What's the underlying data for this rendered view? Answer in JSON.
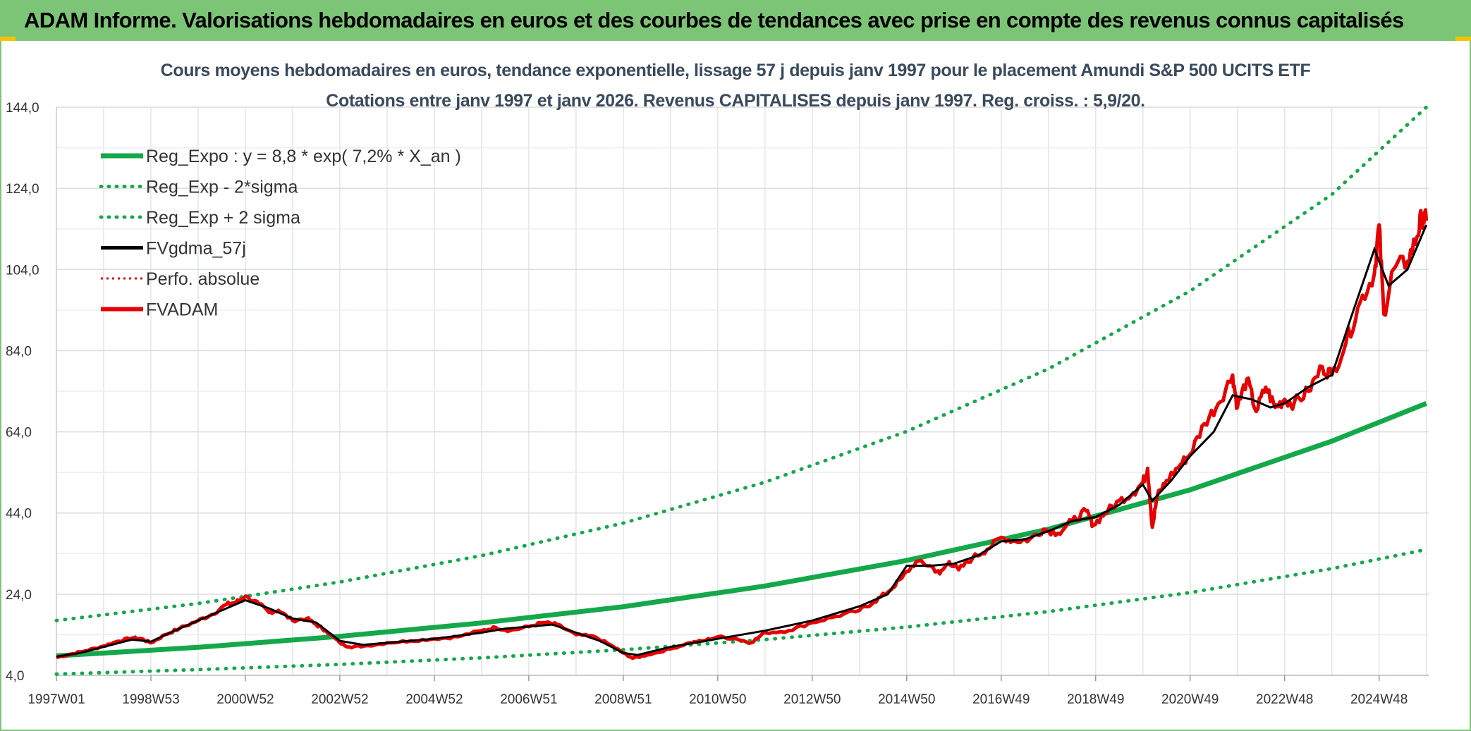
{
  "banner": {
    "title": "ADAM Informe. Valorisations hebdomadaires en euros et des courbes de tendances avec prise en compte des revenus connus capitalisés"
  },
  "colors": {
    "banner_bg": "#7cc576",
    "trend_green": "#14a84b",
    "smoothed_black": "#000000",
    "adam_red": "#e60000",
    "corner_accent": "#f3c300"
  },
  "chart_data": {
    "type": "line",
    "title": "Cours moyens hebdomadaires en euros, tendance exponentielle, lissage 57 j depuis janv 1997 pour le placement Amundi S&P 500 UCITS ETF",
    "subtitle": "Cotations entre janv 1997 et janv 2026. Revenus CAPITALISES depuis janv 1997. Reg. croiss. : 5,9/20.",
    "xlabel": "",
    "ylabel": "",
    "ylim": [
      4,
      144
    ],
    "y_ticks": [
      "4,0",
      "24,0",
      "44,0",
      "64,0",
      "84,0",
      "104,0",
      "124,0",
      "144,0"
    ],
    "y_tick_values": [
      4,
      24,
      44,
      64,
      84,
      104,
      124,
      144
    ],
    "xlim": [
      1997.0,
      2026.05
    ],
    "x_ticks": [
      "1997W01",
      "1998W53",
      "2000W52",
      "2002W52",
      "2004W52",
      "2006W51",
      "2008W51",
      "2010W50",
      "2012W50",
      "2014W50",
      "2016W49",
      "2018W49",
      "2020W49",
      "2022W48",
      "2024W48"
    ],
    "x_tick_years": [
      1997.0,
      1999.0,
      2001.0,
      2003.0,
      2005.0,
      2007.0,
      2009.0,
      2011.0,
      2013.0,
      2015.0,
      2017.0,
      2019.0,
      2021.0,
      2023.0,
      2025.0
    ],
    "grid": true,
    "legend_position": "top-left",
    "legend": [
      {
        "label": "Reg_Expo : y = 8,8 * exp( 7,2% *  X_an )",
        "color": "#14a84b",
        "style": "solid-thick"
      },
      {
        "label": "Reg_Exp - 2*sigma",
        "color": "#14a84b",
        "style": "dotted"
      },
      {
        "label": "Reg_Exp + 2 sigma",
        "color": "#14a84b",
        "style": "dotted"
      },
      {
        "label": "FVgdma_57j",
        "color": "#000000",
        "style": "solid"
      },
      {
        "label": "Perfo. absolue",
        "color": "#e60000",
        "style": "dotted"
      },
      {
        "label": "FVADAM",
        "color": "#e60000",
        "style": "solid-thick"
      }
    ],
    "series": [
      {
        "name": "Reg_Expo : y = 8,8 * exp( 7,2% *  X_an )",
        "x": [
          1997.0,
          2000.0,
          2003.0,
          2006.0,
          2009.0,
          2012.0,
          2015.0,
          2018.0,
          2021.0,
          2024.0,
          2026.0
        ],
        "values": [
          8.8,
          10.9,
          13.6,
          16.9,
          20.9,
          26.0,
          32.3,
          40.0,
          49.7,
          61.7,
          71.0
        ]
      },
      {
        "name": "Reg_Exp - 2*sigma",
        "x": [
          1997.0,
          2000.0,
          2003.0,
          2006.0,
          2009.0,
          2012.0,
          2015.0,
          2018.0,
          2021.0,
          2024.0,
          2026.0
        ],
        "values": [
          4.3,
          5.4,
          6.7,
          8.3,
          10.3,
          12.8,
          15.9,
          19.7,
          24.4,
          30.3,
          35.0
        ]
      },
      {
        "name": "Reg_Exp + 2 sigma",
        "x": [
          1997.0,
          2000.0,
          2003.0,
          2006.0,
          2009.0,
          2012.0,
          2015.0,
          2018.0,
          2021.0,
          2024.0,
          2026.0
        ],
        "values": [
          17.5,
          21.7,
          27.0,
          33.5,
          41.5,
          51.6,
          64.1,
          79.5,
          98.7,
          122.5,
          144.0
        ]
      },
      {
        "name": "FVgdma_57j",
        "x": [
          1997.0,
          1997.5,
          1998.0,
          1998.6,
          1999.0,
          1999.5,
          2000.0,
          2000.7,
          2001.0,
          2001.5,
          2002.0,
          2002.5,
          2003.0,
          2003.5,
          2004.0,
          2005.0,
          2006.0,
          2006.5,
          2007.0,
          2007.5,
          2008.0,
          2008.5,
          2009.0,
          2009.3,
          2010.0,
          2011.0,
          2012.0,
          2013.0,
          2014.0,
          2014.6,
          2015.0,
          2015.5,
          2016.0,
          2016.5,
          2017.0,
          2017.5,
          2018.0,
          2018.5,
          2019.0,
          2019.5,
          2020.0,
          2020.2,
          2020.6,
          2021.0,
          2021.5,
          2021.9,
          2022.3,
          2022.7,
          2023.0,
          2023.5,
          2024.0,
          2024.4,
          2024.9,
          2025.2,
          2025.6,
          2026.0
        ],
        "values": [
          8.6,
          9.5,
          11.0,
          12.8,
          12.3,
          15.0,
          17.5,
          21.0,
          22.5,
          20.5,
          18.0,
          17.0,
          12.5,
          11.5,
          12.0,
          13.0,
          14.5,
          15.5,
          16.0,
          16.5,
          14.5,
          12.5,
          9.5,
          9.0,
          11.0,
          13.0,
          15.0,
          17.5,
          21.0,
          24.0,
          31.0,
          31.0,
          31.5,
          33.5,
          37.0,
          37.5,
          39.5,
          42.0,
          43.0,
          46.0,
          51.0,
          47.0,
          52.0,
          58.0,
          64.0,
          73.0,
          72.0,
          70.0,
          71.0,
          75.0,
          78.0,
          92.0,
          109.0,
          100.0,
          104.0,
          115.0
        ]
      },
      {
        "name": "Perfo. absolue",
        "x": [
          1997.0,
          1997.5,
          1998.0,
          1998.6,
          1999.0,
          1999.5,
          2000.0,
          2000.7,
          2001.0,
          2001.5,
          2002.0,
          2002.5,
          2003.0,
          2003.5,
          2004.0,
          2005.0,
          2006.0,
          2006.5,
          2007.0,
          2007.5,
          2008.0,
          2008.5,
          2009.0,
          2009.3,
          2010.0,
          2011.0,
          2012.0,
          2013.0,
          2014.0,
          2014.6,
          2015.0,
          2015.5,
          2016.0,
          2016.5,
          2017.0,
          2017.5,
          2018.0,
          2018.5,
          2019.0,
          2019.5,
          2020.0,
          2020.2,
          2020.6,
          2021.0,
          2021.5,
          2021.9,
          2022.3,
          2022.7,
          2023.0,
          2023.5,
          2024.0,
          2024.4,
          2024.9,
          2025.2,
          2025.6,
          2026.0
        ],
        "values": [
          8.6,
          9.5,
          11.0,
          12.8,
          12.3,
          15.0,
          17.5,
          21.0,
          22.5,
          20.5,
          18.0,
          17.0,
          12.5,
          11.5,
          12.0,
          13.0,
          14.5,
          15.5,
          16.0,
          16.5,
          14.5,
          12.5,
          9.5,
          9.0,
          11.0,
          13.0,
          15.0,
          17.5,
          21.0,
          24.0,
          31.0,
          31.0,
          31.5,
          33.5,
          37.0,
          37.5,
          39.5,
          42.0,
          43.0,
          46.0,
          51.0,
          47.0,
          52.0,
          58.0,
          64.0,
          73.0,
          72.0,
          70.0,
          71.0,
          75.0,
          78.0,
          92.0,
          109.0,
          100.0,
          104.0,
          115.0
        ]
      },
      {
        "name": "FVADAM",
        "x": [
          1997.0,
          1997.3,
          1997.6,
          1998.0,
          1998.3,
          1998.6,
          1998.8,
          1999.0,
          1999.3,
          1999.6,
          2000.0,
          2000.3,
          2000.6,
          2000.8,
          2001.0,
          2001.3,
          2001.5,
          2001.7,
          2002.0,
          2002.3,
          2002.5,
          2002.7,
          2003.0,
          2003.2,
          2003.5,
          2004.0,
          2004.5,
          2005.0,
          2005.5,
          2006.0,
          2006.3,
          2006.6,
          2007.0,
          2007.3,
          2007.6,
          2008.0,
          2008.4,
          2008.8,
          2009.0,
          2009.2,
          2009.5,
          2010.0,
          2010.4,
          2010.7,
          2011.0,
          2011.4,
          2011.7,
          2012.0,
          2012.5,
          2013.0,
          2013.5,
          2014.0,
          2014.3,
          2014.6,
          2014.9,
          2015.2,
          2015.5,
          2015.7,
          2015.9,
          2016.1,
          2016.4,
          2016.7,
          2017.0,
          2017.3,
          2017.6,
          2017.9,
          2018.2,
          2018.5,
          2018.8,
          2018.95,
          2019.2,
          2019.5,
          2019.8,
          2020.0,
          2020.1,
          2020.2,
          2020.3,
          2020.5,
          2020.8,
          2021.0,
          2021.3,
          2021.6,
          2021.9,
          2022.0,
          2022.2,
          2022.4,
          2022.6,
          2022.8,
          2023.0,
          2023.2,
          2023.5,
          2023.8,
          2024.0,
          2024.3,
          2024.6,
          2024.9,
          2025.0,
          2025.1,
          2025.3,
          2025.6,
          2025.8,
          2025.9,
          2026.0
        ],
        "values": [
          8.4,
          9.2,
          10.0,
          11.2,
          12.4,
          13.2,
          13.0,
          12.0,
          14.0,
          15.5,
          17.5,
          19.0,
          21.5,
          22.0,
          23.5,
          21.5,
          19.5,
          20.0,
          17.5,
          18.0,
          16.5,
          15.0,
          12.0,
          11.0,
          11.2,
          12.0,
          12.5,
          13.0,
          13.5,
          15.0,
          15.8,
          15.0,
          16.0,
          17.0,
          16.5,
          14.0,
          13.5,
          11.0,
          9.5,
          8.2,
          9.0,
          10.5,
          12.0,
          12.5,
          13.5,
          13.0,
          12.0,
          14.5,
          15.0,
          17.0,
          18.5,
          20.0,
          22.0,
          24.5,
          28.0,
          32.0,
          31.0,
          29.0,
          32.0,
          30.0,
          33.0,
          35.0,
          38.0,
          37.0,
          37.5,
          40.0,
          39.0,
          42.0,
          44.5,
          41.0,
          44.0,
          47.0,
          49.0,
          51.5,
          55.0,
          40.5,
          48.0,
          52.0,
          56.0,
          58.5,
          66.0,
          71.0,
          78.0,
          70.0,
          77.0,
          69.0,
          75.0,
          70.0,
          72.0,
          71.0,
          74.0,
          80.0,
          78.0,
          86.0,
          96.0,
          103.0,
          115.0,
          93.0,
          104.0,
          106.0,
          112.0,
          117.0,
          116.0
        ]
      }
    ]
  }
}
